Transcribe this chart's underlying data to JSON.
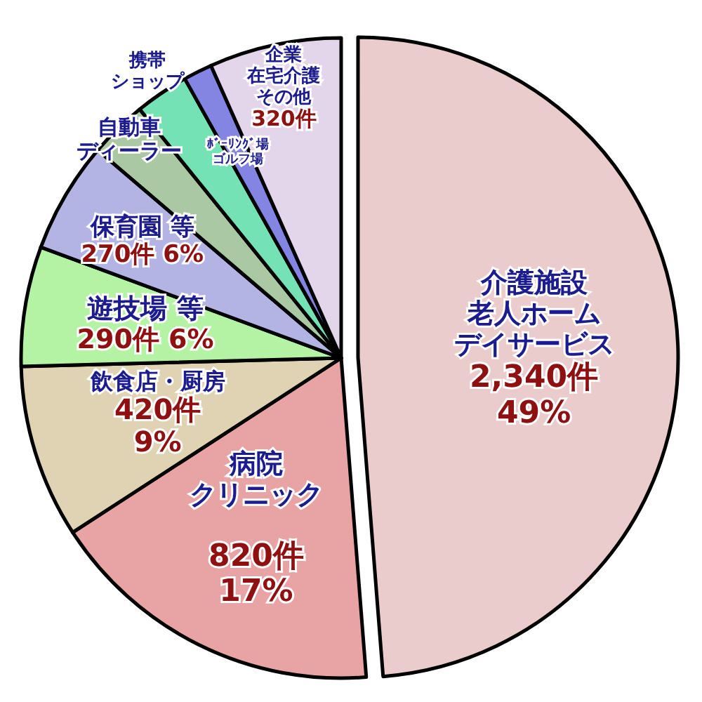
{
  "chart_data": {
    "type": "pie",
    "categories": [
      "介護施設老人ホームデイサービス",
      "病院クリニック",
      "飲食店・厨房",
      "遊技場 等",
      "保育園 等",
      "自動車ディーラー",
      "携帯ショップ",
      "ﾎﾞｰﾘﾝｸﾞ場ゴルフ場",
      "企業在宅介護その他"
    ],
    "values": [
      2340,
      820,
      420,
      290,
      270,
      140,
      130,
      70,
      320
    ],
    "value_labels": [
      "2,340件\n49%",
      "820件\n17%",
      "420件\n9%",
      "290件 6%",
      "270件 6%",
      null,
      null,
      null,
      "320件"
    ],
    "colors": [
      "#ebcccc",
      "#e8a4a4",
      "#dfd3b3",
      "#b4f2a4",
      "#b4b4e4",
      "#aac8a4",
      "#74e2b4",
      "#8484e2",
      "#e4d6ea"
    ]
  }
}
